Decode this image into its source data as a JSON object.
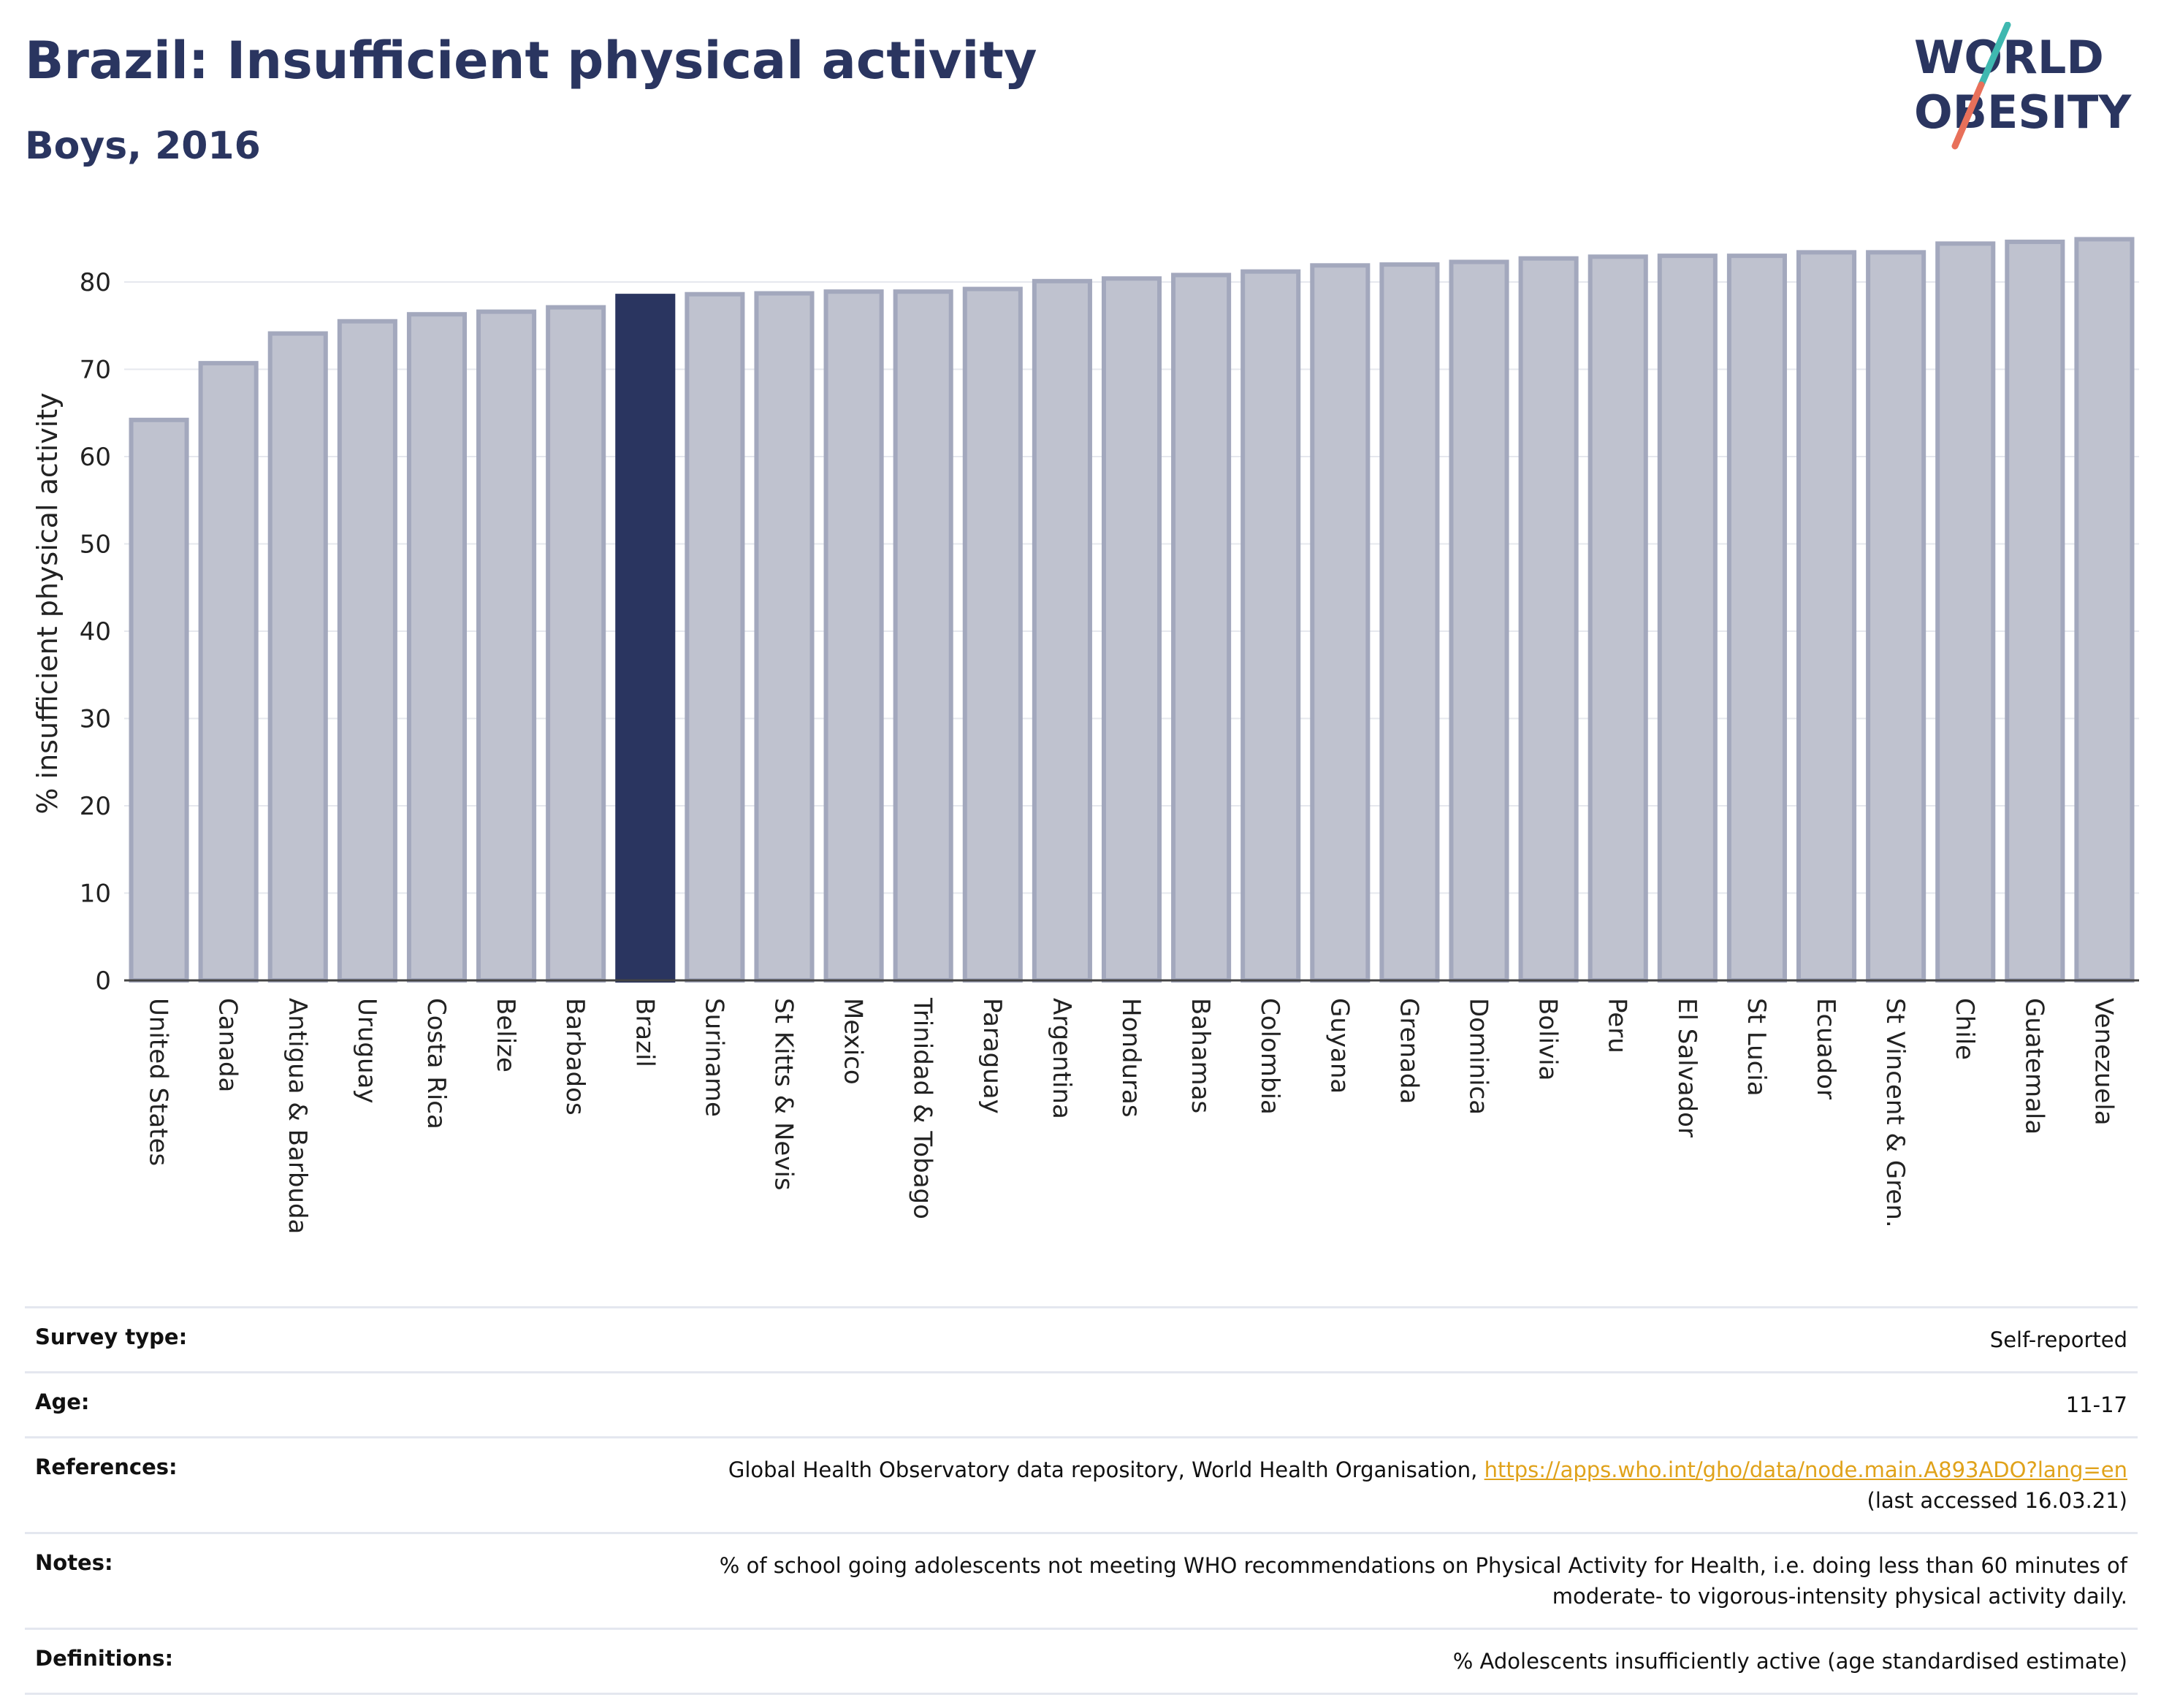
{
  "header": {
    "title": "Brazil: Insufficient physical activity",
    "subtitle": "Boys, 2016"
  },
  "logo": {
    "line1": "WORLD",
    "line2": "OBESITY"
  },
  "colors": {
    "highlight": "#2a3560",
    "bar_fill": "#bfc2cf",
    "bar_stroke": "#a3a8bd",
    "accent_teal": "#3fb8b0",
    "accent_coral": "#e8705a",
    "link": "#e0a21a"
  },
  "chart_data": {
    "type": "bar",
    "title": "Brazil: Insufficient physical activity",
    "subtitle": "Boys, 2016",
    "ylabel": "% insufficient physical activity",
    "xlabel": "",
    "ylim": [
      0,
      85
    ],
    "yticks": [
      0,
      10,
      20,
      30,
      40,
      50,
      60,
      70,
      80
    ],
    "grid": true,
    "highlight": "Brazil",
    "categories": [
      "United States",
      "Canada",
      "Antigua & Barbuda",
      "Uruguay",
      "Costa Rica",
      "Belize",
      "Barbados",
      "Brazil",
      "Suriname",
      "St Kitts & Nevis",
      "Mexico",
      "Trinidad & Tobago",
      "Paraguay",
      "Argentina",
      "Honduras",
      "Bahamas",
      "Colombia",
      "Guyana",
      "Grenada",
      "Dominica",
      "Bolivia",
      "Peru",
      "El Salvador",
      "St Lucia",
      "Ecuador",
      "St Vincent & Gren.",
      "Chile",
      "Guatemala",
      "Venezuela"
    ],
    "values": [
      64.2,
      70.7,
      74.1,
      75.5,
      76.3,
      76.6,
      77.1,
      78.4,
      78.6,
      78.7,
      78.9,
      78.9,
      79.2,
      80.1,
      80.4,
      80.8,
      81.2,
      81.9,
      82.0,
      82.3,
      82.7,
      82.9,
      83.0,
      83.0,
      83.4,
      83.4,
      84.4,
      84.6,
      84.9
    ]
  },
  "info": {
    "survey_type_label": "Survey type:",
    "survey_type_value": "Self-reported",
    "age_label": "Age:",
    "age_value": "11-17",
    "references_label": "References:",
    "references_text": "Global Health Observatory data repository, World Health Organisation, ",
    "references_link": "https://apps.who.int/gho/data/node.main.A893ADO?lang=en",
    "references_accessed": "(last accessed 16.03.21)",
    "notes_label": "Notes:",
    "notes_line1": "% of school going adolescents not meeting WHO recommendations on Physical Activity for Health, i.e. doing less than 60 minutes of",
    "notes_line2": "moderate- to vigorous-intensity physical activity daily.",
    "definitions_label": "Definitions:",
    "definitions_value": "% Adolescents insufficiently active (age standardised estimate)"
  }
}
